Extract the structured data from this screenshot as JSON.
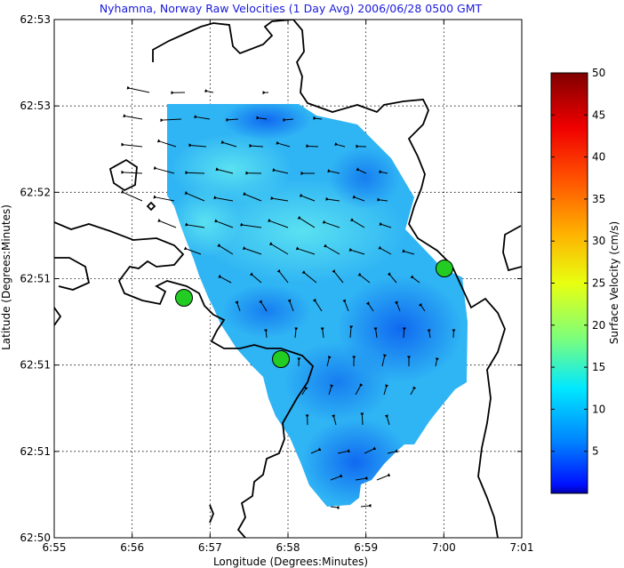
{
  "chart_data": {
    "type": "heatmap",
    "title": "Nyhamna, Norway Raw Velocities (1 Day Avg) 2006/06/28 0500 GMT",
    "xlabel": "Longitude (Degrees:Minutes)",
    "ylabel": "Latitude (Degrees:Minutes)",
    "x_tick_labels": [
      "6:55",
      "6:56",
      "6:57",
      "6:58",
      "6:59",
      "7:00",
      "7:01"
    ],
    "y_tick_labels": [
      "62:53",
      "62:53",
      "62:52",
      "62:51",
      "62:51",
      "62:51",
      "62:50"
    ],
    "grid": true,
    "colorbar": {
      "label": "Surface Velocity (cm/s)",
      "range": [
        0,
        50
      ],
      "tick_labels": [
        "5",
        "10",
        "15",
        "20",
        "25",
        "30",
        "35",
        "40",
        "45",
        "50"
      ],
      "colormap": "jet"
    },
    "stations": [
      {
        "color": "#22cc22"
      },
      {
        "color": "#22cc22"
      },
      {
        "color": "#22cc22"
      }
    ],
    "typical_speed_range_cm_s": [
      2,
      13
    ]
  }
}
